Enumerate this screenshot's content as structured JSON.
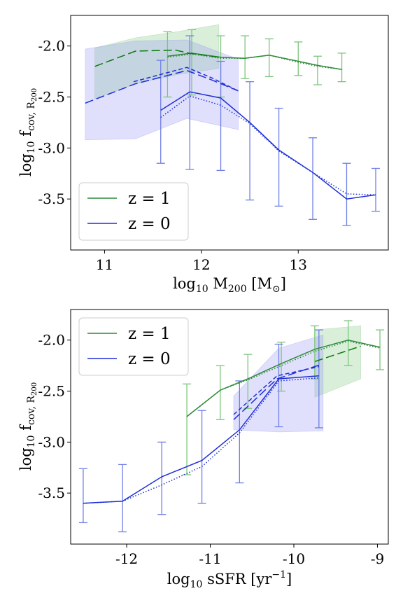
{
  "colors": {
    "green": "#2e8b3a",
    "green_dark": "#0a7a0a",
    "blue": "#1f2fd6",
    "blue_err": "#6f7fe6",
    "green_fill": "#7bc57b",
    "blue_fill": "#8f8ff5"
  },
  "chart_data": [
    {
      "type": "line",
      "xlabel": {
        "main": "log",
        "sub": "10",
        "rest": " M",
        "sub2": "200",
        "unit": " [M",
        "unit_sub": "⊙",
        "close": "]"
      },
      "ylabel": {
        "main": "log",
        "sub": "10",
        "rest": " f",
        "sub2": "cov, R",
        "sub3": "200"
      },
      "xlim": [
        10.65,
        13.93
      ],
      "ylim": [
        -4.0,
        -1.7
      ],
      "xticks": [
        11,
        12,
        13
      ],
      "xtick_labels": [
        "11",
        "12",
        "13"
      ],
      "yticks": [
        -2.0,
        -2.5,
        -3.0,
        -3.5
      ],
      "ytick_labels": [
        "-2.0",
        "-2.5",
        "-3.0",
        "-3.5"
      ],
      "legend": {
        "position": "lower-left",
        "entries": [
          {
            "label": "z = 1",
            "color": "green"
          },
          {
            "label": "z = 0",
            "color": "blue"
          }
        ]
      },
      "series": [
        {
          "color": "green",
          "style": "solid",
          "x": [
            11.65,
            11.9,
            12.2,
            12.45,
            12.7,
            13.0,
            13.2,
            13.45
          ],
          "y": [
            -2.1,
            -2.07,
            -2.11,
            -2.12,
            -2.09,
            -2.15,
            -2.19,
            -2.23
          ]
        },
        {
          "color": "green",
          "style": "dotted",
          "x": [
            11.65,
            11.9,
            12.2,
            12.45,
            12.7,
            13.0,
            13.2,
            13.45
          ],
          "y": [
            -2.11,
            -2.08,
            -2.12,
            -2.12,
            -2.09,
            -2.16,
            -2.2,
            -2.23
          ]
        },
        {
          "color": "green_dark",
          "style": "longdash",
          "x": [
            10.9,
            11.32,
            11.73,
            11.87,
            12.18
          ],
          "y": [
            -2.2,
            -2.05,
            -2.04,
            -2.07,
            -2.11
          ]
        },
        {
          "color": "blue",
          "style": "solid",
          "x": [
            11.58,
            11.88,
            12.2,
            12.5,
            12.8,
            13.15,
            13.5,
            13.8
          ],
          "y": [
            -2.63,
            -2.45,
            -2.51,
            -2.75,
            -3.02,
            -3.24,
            -3.5,
            -3.46
          ]
        },
        {
          "color": "blue",
          "style": "dotted",
          "x": [
            11.58,
            11.88,
            12.2,
            12.5,
            12.8,
            13.15,
            13.5,
            13.8
          ],
          "y": [
            -2.7,
            -2.49,
            -2.58,
            -2.76,
            -3.03,
            -3.24,
            -3.45,
            -3.46
          ]
        },
        {
          "color": "blue",
          "style": "longdash",
          "x": [
            10.8,
            11.32,
            11.85,
            12.1,
            12.38
          ],
          "y": [
            -2.56,
            -2.37,
            -2.24,
            -2.33,
            -2.44
          ]
        },
        {
          "color": "blue",
          "style": "dashed",
          "x": [
            11.3,
            11.85,
            12.1,
            12.38
          ],
          "y": [
            -2.35,
            -2.21,
            -2.31,
            -2.44
          ]
        }
      ],
      "errorbars": [
        {
          "color": "green",
          "x": [
            11.65,
            11.9,
            12.2,
            12.45,
            12.7,
            13.0,
            13.2,
            13.45
          ],
          "low": [
            -2.5,
            -2.48,
            -2.5,
            -2.32,
            -2.3,
            -2.29,
            -2.38,
            -2.35
          ],
          "high": [
            -1.86,
            -1.84,
            -1.9,
            -1.9,
            -1.93,
            -1.96,
            -2.1,
            -2.07
          ]
        },
        {
          "color": "blue",
          "x": [
            11.58,
            11.88,
            12.2,
            12.5,
            12.8,
            13.15,
            13.5,
            13.8
          ],
          "low": [
            -3.15,
            -3.21,
            -3.22,
            -3.51,
            -3.57,
            -3.7,
            -3.76,
            -3.62
          ],
          "high": [
            -2.14,
            -1.9,
            -2.15,
            -2.35,
            -2.61,
            -2.9,
            -3.15,
            -3.2
          ]
        }
      ],
      "bands": [
        {
          "color": "green_fill",
          "x": [
            10.9,
            11.32,
            11.75,
            12.18,
            12.18,
            11.75,
            11.32,
            10.9
          ],
          "y": [
            -2.52,
            -2.37,
            -2.28,
            -2.22,
            -1.79,
            -1.86,
            -1.92,
            -2.02
          ]
        },
        {
          "color": "blue_fill",
          "x": [
            10.8,
            11.32,
            11.85,
            12.38,
            12.38,
            11.85,
            11.32,
            10.8
          ],
          "y": [
            -2.92,
            -2.91,
            -2.71,
            -2.82,
            -2.13,
            -1.94,
            -1.95,
            -2.03
          ]
        }
      ]
    },
    {
      "type": "line",
      "xlabel": {
        "main": "log",
        "sub": "10",
        "rest": " sSFR [yr",
        "sup": "−1",
        "close": "]"
      },
      "ylabel": {
        "main": "log",
        "sub": "10",
        "rest": " f",
        "sub2": "cov, R",
        "sub3": "200"
      },
      "xlim": [
        -12.67,
        -8.87
      ],
      "ylim": [
        -4.0,
        -1.7
      ],
      "xticks": [
        -12,
        -11,
        -10,
        -9
      ],
      "xtick_labels": [
        "-12",
        "-11",
        "-10",
        "-9"
      ],
      "yticks": [
        -2.0,
        -2.5,
        -3.0,
        -3.5
      ],
      "ytick_labels": [
        "-2.0",
        "-2.5",
        "-3.0",
        "-3.5"
      ],
      "legend": {
        "position": "top-left",
        "entries": [
          {
            "label": "z = 1",
            "color": "green"
          },
          {
            "label": "z = 0",
            "color": "blue"
          }
        ]
      },
      "series": [
        {
          "color": "green",
          "style": "solid",
          "x": [
            -11.28,
            -10.88,
            -10.55,
            -10.15,
            -9.75,
            -9.35,
            -8.97
          ],
          "y": [
            -2.75,
            -2.49,
            -2.38,
            -2.23,
            -2.09,
            -2.0,
            -2.07
          ]
        },
        {
          "color": "green",
          "style": "dotted",
          "x": [
            -11.28,
            -10.88,
            -10.55,
            -10.15,
            -9.75,
            -9.35,
            -8.97
          ],
          "y": [
            -2.75,
            -2.49,
            -2.39,
            -2.25,
            -2.11,
            -2.01,
            -2.08
          ]
        },
        {
          "color": "green_dark",
          "style": "longdash",
          "x": [
            -9.75,
            -9.2
          ],
          "y": [
            -2.21,
            -2.06
          ]
        },
        {
          "color": "blue",
          "style": "solid",
          "x": [
            -12.52,
            -12.05,
            -11.58,
            -11.1,
            -10.65,
            -10.18,
            -9.7
          ],
          "y": [
            -3.6,
            -3.58,
            -3.34,
            -3.18,
            -2.88,
            -2.38,
            -2.35
          ]
        },
        {
          "color": "blue",
          "style": "dotted",
          "x": [
            -12.52,
            -12.05,
            -11.58,
            -11.1,
            -10.65,
            -10.18,
            -9.7
          ],
          "y": [
            -3.6,
            -3.58,
            -3.42,
            -3.24,
            -2.91,
            -2.4,
            -2.37
          ]
        },
        {
          "color": "blue",
          "style": "longdash",
          "x": [
            -10.72,
            -10.2,
            -9.68
          ],
          "y": [
            -2.78,
            -2.38,
            -2.24
          ]
        },
        {
          "color": "blue",
          "style": "dashed",
          "x": [
            -10.72,
            -10.2,
            -9.7
          ],
          "y": [
            -2.73,
            -2.35,
            -2.26
          ]
        }
      ],
      "errorbars": [
        {
          "color": "green",
          "x": [
            -11.28,
            -10.88,
            -10.55,
            -10.15,
            -9.75,
            -9.35,
            -8.97
          ],
          "low": [
            -3.32,
            -2.78,
            -2.67,
            -2.5,
            -2.38,
            -2.25,
            -2.29
          ],
          "high": [
            -2.43,
            -2.25,
            -2.14,
            -2.02,
            -1.86,
            -1.81,
            -1.9
          ]
        },
        {
          "color": "blue",
          "x": [
            -12.52,
            -12.05,
            -11.58,
            -11.1,
            -10.65,
            -10.18,
            -9.7
          ],
          "low": [
            -3.79,
            -3.88,
            -3.71,
            -3.6,
            -3.4,
            -2.85,
            -2.86
          ],
          "high": [
            -3.26,
            -3.22,
            -3.0,
            -2.69,
            -2.4,
            -2.04,
            -1.9
          ]
        }
      ],
      "bands": [
        {
          "color": "green_fill",
          "x": [
            -9.75,
            -9.2,
            -9.2,
            -9.75
          ],
          "y": [
            -2.56,
            -2.38,
            -1.86,
            -1.9
          ]
        },
        {
          "color": "blue_fill",
          "x": [
            -10.72,
            -10.18,
            -9.65,
            -9.65,
            -10.18,
            -10.72
          ],
          "y": [
            -2.88,
            -2.9,
            -2.89,
            -1.95,
            -2.08,
            -2.55
          ]
        }
      ]
    }
  ]
}
